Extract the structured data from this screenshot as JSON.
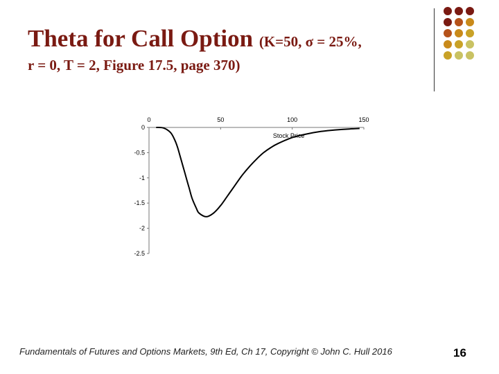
{
  "slide": {
    "title_main": "Theta for Call Option ",
    "title_params_1": "(K=50,  σ = 25%,",
    "title_params_2": "r = 0, T = 2, Figure 17.5, page 370)",
    "footer": "Fundamentals of Futures and Options Markets, 9th Ed, Ch 17, Copyright © John C. Hull 2016",
    "page_number": "16"
  },
  "decor": {
    "dot_colors": [
      [
        "#7a1a12",
        "#7a1a12",
        "#7a1a12"
      ],
      [
        "#7a1a12",
        "#b5521a",
        "#c98a1a"
      ],
      [
        "#b5521a",
        "#c98a1a",
        "#c9a227"
      ],
      [
        "#c98a1a",
        "#c9a227",
        "#c9c263"
      ],
      [
        "#c9a227",
        "#c9c263",
        "#c9c263"
      ]
    ]
  },
  "chart_data": {
    "type": "line",
    "title": "",
    "xlabel": "Stock Price",
    "ylabel": "",
    "xlim": [
      0,
      150
    ],
    "ylim": [
      -2.5,
      0
    ],
    "x_ticks": [
      "0",
      "50",
      "100",
      "150"
    ],
    "y_ticks": [
      "0",
      "-0.5",
      "-1",
      "-1.5",
      "-2",
      "-2.5"
    ],
    "x_axis_position": "top",
    "grid": false,
    "legend": "none",
    "line_color": "#000000",
    "series": [
      {
        "x": [
          5,
          10,
          15,
          18,
          20,
          22,
          25,
          28,
          30,
          33,
          35,
          40,
          45,
          50,
          55,
          60,
          65,
          70,
          75,
          80,
          85,
          90,
          100,
          110,
          120,
          130,
          140,
          147
        ],
        "values": [
          0,
          -0.01,
          -0.1,
          -0.25,
          -0.4,
          -0.6,
          -0.9,
          -1.2,
          -1.4,
          -1.6,
          -1.7,
          -1.77,
          -1.7,
          -1.55,
          -1.35,
          -1.15,
          -0.95,
          -0.78,
          -0.63,
          -0.5,
          -0.4,
          -0.32,
          -0.2,
          -0.13,
          -0.08,
          -0.05,
          -0.03,
          -0.02
        ]
      }
    ]
  }
}
